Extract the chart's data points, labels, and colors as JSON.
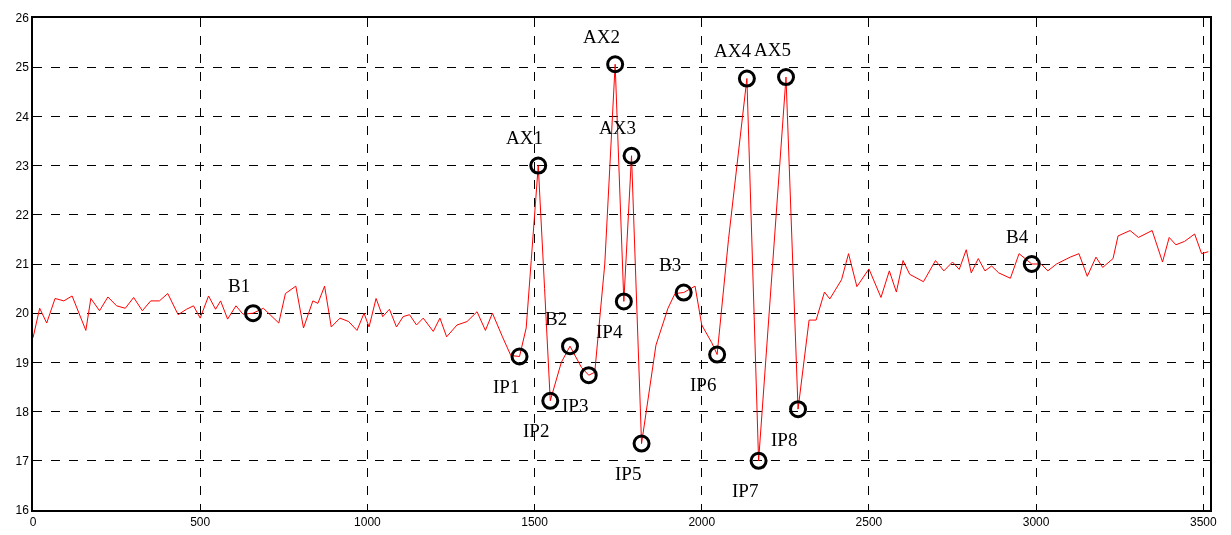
{
  "chart_data": {
    "type": "line",
    "xlim": [
      0,
      3520
    ],
    "ylim": [
      16,
      26
    ],
    "xticks": [
      0,
      500,
      1000,
      1500,
      2000,
      2500,
      3000,
      3500
    ],
    "yticks": [
      16,
      17,
      18,
      19,
      20,
      21,
      22,
      23,
      24,
      25,
      26
    ],
    "grid": true,
    "legend": false,
    "series": [
      {
        "color": "#ff0000",
        "marker": "none",
        "x": [
          0,
          20,
          41,
          66,
          92,
          117,
          158,
          173,
          199,
          224,
          250,
          276,
          301,
          327,
          352,
          378,
          403,
          434,
          459,
          480,
          500,
          525,
          546,
          561,
          582,
          607,
          628,
          658,
          689,
          709,
          735,
          755,
          786,
          809,
          837,
          852,
          872,
          892,
          918,
          944,
          969,
          990,
          1005,
          1026,
          1046,
          1066,
          1087,
          1107,
          1126,
          1147,
          1167,
          1197,
          1217,
          1237,
          1268,
          1298,
          1328,
          1353,
          1374,
          1404,
          1429,
          1455,
          1475,
          1490,
          1511,
          1530,
          1547,
          1580,
          1606,
          1640,
          1662,
          1680,
          1710,
          1741,
          1767,
          1790,
          1820,
          1863,
          1899,
          1920,
          1946,
          1980,
          2000,
          2030,
          2046,
          2080,
          2135,
          2170,
          2252,
          2288,
          2321,
          2342,
          2367,
          2383,
          2418,
          2439,
          2464,
          2500,
          2536,
          2561,
          2582,
          2602,
          2622,
          2663,
          2699,
          2724,
          2750,
          2770,
          2791,
          2806,
          2827,
          2847,
          2867,
          2888,
          2923,
          2949,
          2987,
          3015,
          3035,
          3061,
          3102,
          3128,
          3153,
          3179,
          3199,
          3230,
          3245,
          3281,
          3306,
          3347,
          3378,
          3398,
          3418,
          3444,
          3474,
          3495,
          3515
        ],
        "values": [
          19.5,
          20.1,
          19.8,
          20.3,
          20.25,
          20.35,
          19.65,
          20.3,
          20.05,
          20.33,
          20.15,
          20.1,
          20.32,
          20.05,
          20.25,
          20.25,
          20.4,
          19.97,
          20.08,
          20.15,
          19.9,
          20.35,
          20.08,
          20.25,
          19.88,
          20.15,
          19.98,
          20.0,
          20.1,
          19.97,
          19.8,
          20.4,
          20.55,
          19.7,
          20.25,
          20.2,
          20.55,
          19.72,
          19.9,
          19.83,
          19.65,
          20.0,
          19.72,
          20.3,
          19.93,
          20.08,
          19.72,
          19.93,
          19.97,
          19.76,
          19.9,
          19.63,
          19.9,
          19.52,
          19.76,
          19.83,
          20.03,
          19.65,
          20.0,
          19.52,
          19.14,
          19.12,
          19.7,
          21.07,
          23.0,
          20.5,
          18.22,
          19.0,
          19.33,
          18.9,
          18.74,
          18.8,
          21.0,
          25.06,
          20.24,
          23.2,
          17.35,
          19.35,
          20.1,
          20.4,
          20.42,
          20.55,
          19.76,
          19.4,
          19.16,
          21.5,
          24.77,
          17.0,
          24.8,
          18.05,
          19.86,
          19.86,
          20.43,
          20.29,
          20.68,
          21.21,
          20.54,
          20.9,
          20.32,
          20.86,
          20.43,
          21.07,
          20.79,
          20.64,
          21.07,
          20.86,
          21.04,
          20.89,
          21.29,
          20.82,
          21.11,
          20.86,
          20.96,
          20.82,
          20.71,
          21.21,
          21.0,
          21.0,
          20.86,
          21.0,
          21.14,
          21.21,
          20.75,
          21.14,
          20.93,
          21.11,
          21.57,
          21.68,
          21.54,
          21.68,
          21.04,
          21.54,
          21.39,
          21.46,
          21.61,
          21.21,
          21.25
        ]
      },
      {
        "type": "scatter",
        "color": "#000000",
        "marker": "circle",
        "x": [
          658,
          1455,
          1511,
          1547,
          1606,
          1662,
          1741,
          1767,
          1790,
          1820,
          1946,
          2046,
          2135,
          2170,
          2252,
          2288,
          2987
        ],
        "values": [
          20.0,
          19.12,
          23.0,
          18.22,
          19.33,
          18.74,
          25.06,
          20.24,
          23.2,
          17.35,
          20.42,
          19.16,
          24.77,
          17.0,
          24.8,
          18.05,
          21.0
        ]
      }
    ],
    "annotations": [
      {
        "text": "B1",
        "x": 658,
        "y": 20.0
      },
      {
        "text": "IP1",
        "x": 1455,
        "y": 19.12
      },
      {
        "text": "AX1",
        "x": 1511,
        "y": 23.0
      },
      {
        "text": "IP2",
        "x": 1547,
        "y": 18.22
      },
      {
        "text": "B2",
        "x": 1606,
        "y": 19.33
      },
      {
        "text": "IP3",
        "x": 1662,
        "y": 18.74
      },
      {
        "text": "AX2",
        "x": 1741,
        "y": 25.06
      },
      {
        "text": "IP4",
        "x": 1767,
        "y": 20.24
      },
      {
        "text": "AX3",
        "x": 1790,
        "y": 23.2
      },
      {
        "text": "IP5",
        "x": 1820,
        "y": 17.35
      },
      {
        "text": "B3",
        "x": 1946,
        "y": 20.42
      },
      {
        "text": "IP6",
        "x": 2046,
        "y": 19.16
      },
      {
        "text": "AX4",
        "x": 2135,
        "y": 24.77
      },
      {
        "text": "IP7",
        "x": 2170,
        "y": 17.0
      },
      {
        "text": "AX5",
        "x": 2252,
        "y": 24.8
      },
      {
        "text": "IP8",
        "x": 2288,
        "y": 18.05
      },
      {
        "text": "B4",
        "x": 2987,
        "y": 21.0
      }
    ]
  }
}
